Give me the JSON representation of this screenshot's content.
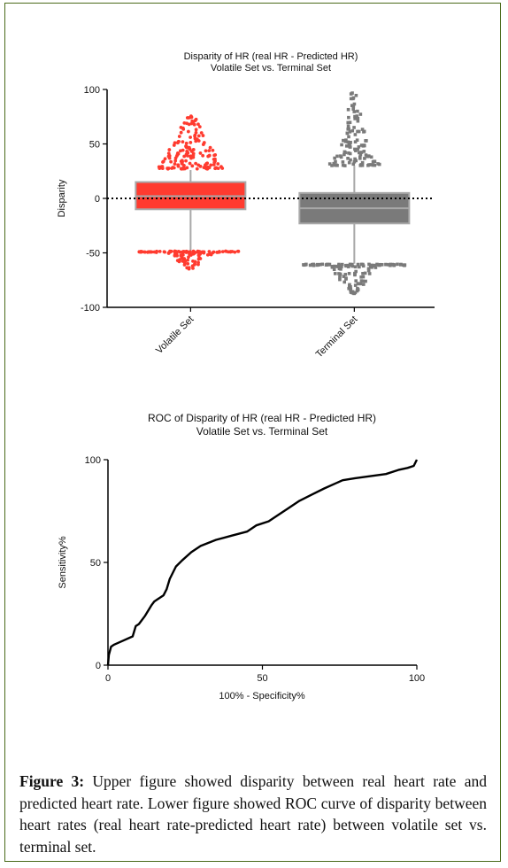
{
  "chart_data": [
    {
      "type": "box",
      "title": "Disparity of HR (real HR - Predicted HR)",
      "subtitle": "Volatile Set vs. Terminal Set",
      "xlabel": "",
      "ylabel": "Disparity",
      "ylim": [
        -100,
        100
      ],
      "yticks": [
        "100",
        "50",
        "0",
        "-50",
        "-100"
      ],
      "reference_line": 0,
      "categories": [
        "Volatile Set",
        "Terminal Set"
      ],
      "series": [
        {
          "name": "Volatile Set",
          "color": "#ff3b2f",
          "whisker_low": -50,
          "q1": -10,
          "median": 2,
          "q3": 15,
          "whisker_high": 26,
          "outliers_high_range": [
            27,
            78
          ],
          "outliers_low_range": [
            -65,
            -48
          ]
        },
        {
          "name": "Terminal Set",
          "color": "#7a7a7a",
          "whisker_low": -60,
          "q1": -23,
          "median": -9,
          "q3": 5,
          "whisker_high": 30,
          "outliers_high_range": [
            30,
            99
          ],
          "outliers_low_range": [
            -88,
            -60
          ]
        }
      ]
    },
    {
      "type": "line",
      "title": "ROC of Disparity of HR (real HR - Predicted HR)",
      "subtitle": "Volatile Set vs. Terminal Set",
      "xlabel": "100% - Specificity%",
      "ylabel": "Sensitivity%",
      "xlim": [
        0,
        100
      ],
      "ylim": [
        0,
        100
      ],
      "xticks": [
        "0",
        "50",
        "100"
      ],
      "yticks": [
        "0",
        "50",
        "100"
      ],
      "series": [
        {
          "x": [
            0,
            0.3,
            1,
            2,
            5,
            8,
            9,
            10,
            12,
            14,
            15,
            16,
            18,
            19,
            20,
            21,
            22,
            24,
            27,
            30,
            35,
            40,
            45,
            48,
            52,
            55,
            58,
            62,
            66,
            70,
            73,
            76,
            80,
            85,
            90,
            94,
            97,
            99,
            100
          ],
          "y": [
            0,
            5,
            9,
            10,
            12,
            14,
            19,
            20,
            24,
            29,
            31,
            32,
            34,
            37,
            42,
            45,
            48,
            51,
            55,
            58,
            61,
            63,
            65,
            68,
            70,
            73,
            76,
            80,
            83,
            86,
            88,
            90,
            91,
            92,
            93,
            95,
            96,
            97,
            100
          ]
        }
      ]
    }
  ],
  "caption": {
    "label": "Figure 3:",
    "text": " Upper figure showed disparity between real heart rate and predicted heart rate. Lower figure showed ROC curve of disparity between heart rates (real heart rate-predicted heart rate) between volatile set vs. terminal set."
  }
}
